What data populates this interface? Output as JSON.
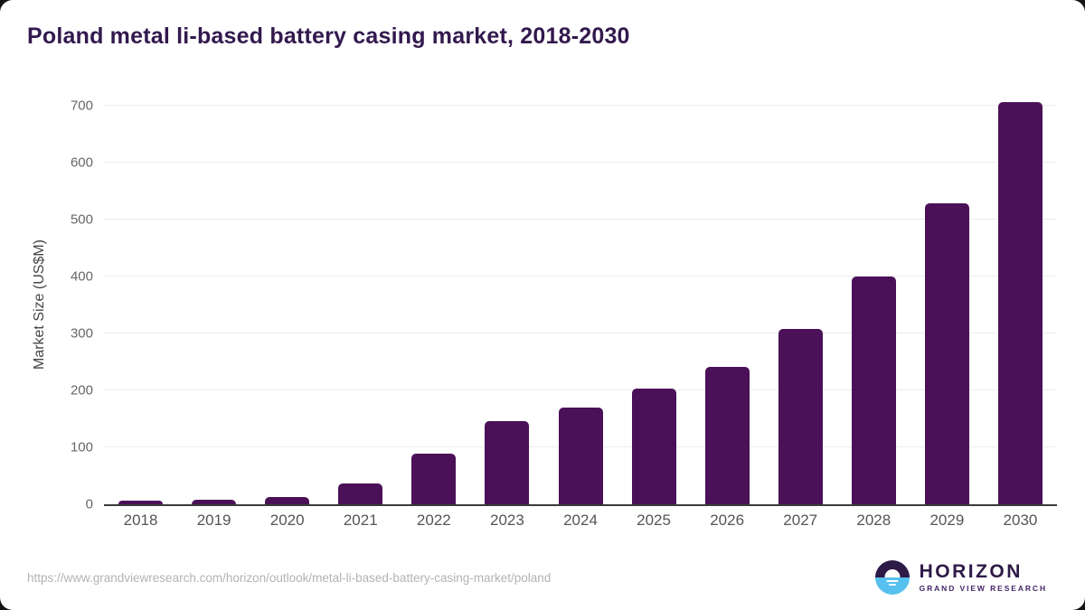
{
  "chart_data": {
    "type": "bar",
    "title": "Poland metal li-based battery casing market, 2018-2030",
    "categories": [
      "2018",
      "2019",
      "2020",
      "2021",
      "2022",
      "2023",
      "2024",
      "2025",
      "2026",
      "2027",
      "2028",
      "2029",
      "2030"
    ],
    "values": [
      7,
      8,
      12,
      36,
      89,
      146,
      170,
      203,
      242,
      308,
      400,
      529,
      707
    ],
    "xlabel": "",
    "ylabel": "Market Size (US$M)",
    "ylim": [
      0,
      700
    ],
    "ytick_interval": 100,
    "grid": true,
    "legend": false,
    "bar_color": "#4a1158",
    "gridline_color": "#ececec",
    "axis_line_color": "#3a3a3a"
  },
  "footer": {
    "source_url": "https://www.grandviewresearch.com/horizon/outlook/metal-li-based-battery-casing-market/poland",
    "logo": {
      "brand": "HORIZON",
      "sub_brand": "GRAND VIEW RESEARCH",
      "icon": "horizon-sunset-icon",
      "icon_top_color": "#2e1a47",
      "icon_bottom_color": "#56c1ee"
    }
  },
  "colors": {
    "title": "#33194e",
    "background": "#ffffff"
  }
}
